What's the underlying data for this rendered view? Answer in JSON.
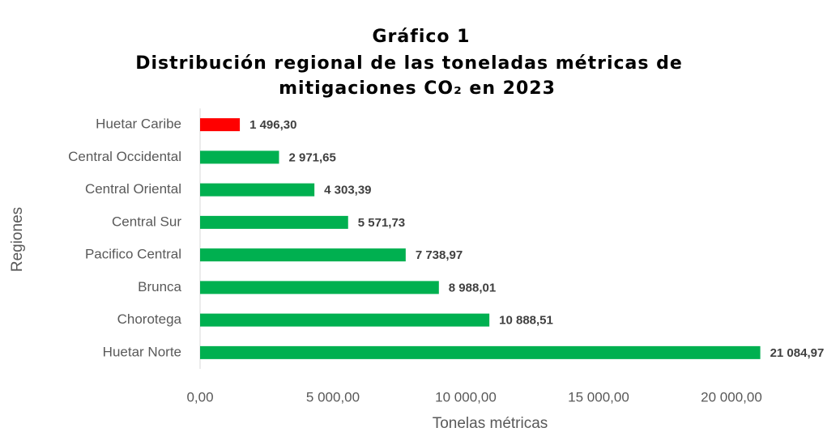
{
  "chart_data": {
    "type": "bar",
    "orientation": "horizontal",
    "title": [
      "Gráfico 1",
      "Distribución regional de las toneladas métricas de",
      "mitigaciones CO₂ en 2023"
    ],
    "categories": [
      "Huetar Caribe",
      "Central Occidental",
      "Central Oriental",
      "Central Sur",
      "Pacifico Central",
      "Brunca",
      "Chorotega",
      "Huetar Norte"
    ],
    "values": [
      1496.3,
      2971.65,
      4303.39,
      5571.73,
      7738.97,
      8988.01,
      10888.51,
      21084.97
    ],
    "value_labels": [
      "1 496,30",
      "2 971,65",
      "4 303,39",
      "5 571,73",
      "7 738,97",
      "8 988,01",
      "10 888,51",
      "21 084,97"
    ],
    "colors": [
      "#ff0000",
      "#00b050",
      "#00b050",
      "#00b050",
      "#00b050",
      "#00b050",
      "#00b050",
      "#00b050"
    ],
    "xlim": [
      0,
      22000
    ],
    "xticks": [
      {
        "value": 0,
        "label": "0,00"
      },
      {
        "value": 5000,
        "label": "5 000,00"
      },
      {
        "value": 10000,
        "label": "10 000,00"
      },
      {
        "value": 15000,
        "label": "15 000,00"
      },
      {
        "value": 20000,
        "label": "20 000,00"
      }
    ],
    "xlabel": "Tonelas métricas",
    "ylabel": "Regiones",
    "grid": false
  }
}
